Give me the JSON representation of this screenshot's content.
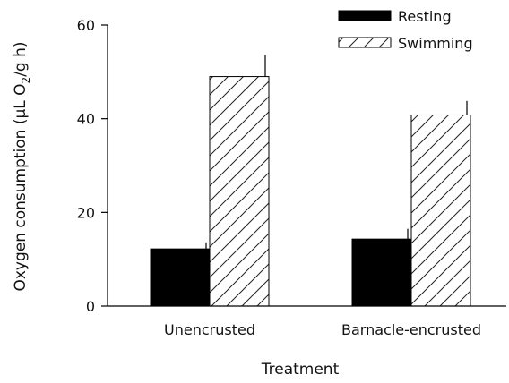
{
  "chart_data": {
    "type": "bar",
    "xlabel": "Treatment",
    "ylabel_main": "Oxygen consumption (µL O",
    "ylabel_sub": "2",
    "ylabel_tail": "/g h)",
    "categories": [
      "Unencrusted",
      "Barnacle-encrusted"
    ],
    "series": [
      {
        "name": "Resting",
        "values": [
          12.2,
          14.3
        ],
        "errors": [
          1.4,
          2.2
        ],
        "fill": "solid",
        "color": "#000000"
      },
      {
        "name": "Swimming",
        "values": [
          49.0,
          40.8
        ],
        "errors": [
          4.6,
          3.0
        ],
        "fill": "hatched",
        "color": "#ffffff"
      }
    ],
    "ylim": [
      0,
      60
    ],
    "yticks": [
      "0",
      "20",
      "40",
      "60"
    ],
    "legend_position": "top-right",
    "grid": false
  }
}
